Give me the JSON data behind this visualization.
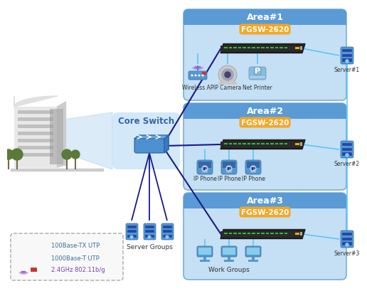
{
  "bg_color": "#ffffff",
  "area_fill_color": "#c5dff5",
  "area_header_color": "#5b9bd5",
  "area_border_color": "#7ab0d0",
  "fgsw_bg_color": "#f5a623",
  "core_switch_bg_color": "#cce4f7",
  "line_100base_color": "#5bc8f5",
  "line_1000base_color": "#1a1a8a",
  "wifi_color": "#9955cc",
  "area1_label": "Area#1",
  "area2_label": "Area#2",
  "area3_label": "Area#3",
  "fgsw_label": "FGSW-2620",
  "core_switch_label": "Core Switch",
  "server_groups_label": "Server Groups",
  "work_groups_label": "Work Groups",
  "wireless_ap_label": "Wireless AP",
  "ip_camera_label": "IP Camera",
  "net_printer_label": "Net Printer",
  "ip_phone_label": "IP Phone",
  "server1_label": "Server#1",
  "server2_label": "Server#2",
  "server3_label": "Server#3",
  "legend_100base": "100Base-TX UTP",
  "legend_1000base": "1000Base-T UTP",
  "legend_wifi": "2.4GHz 802.11b/g"
}
